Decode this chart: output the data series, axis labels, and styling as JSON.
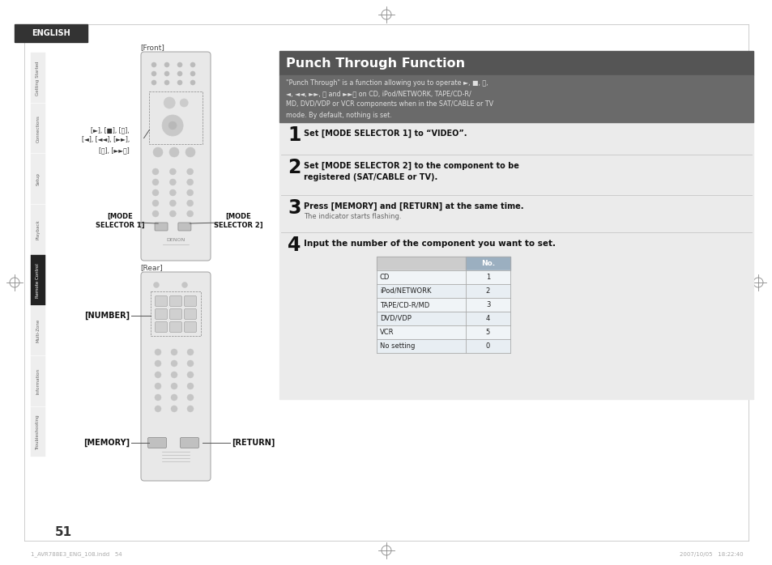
{
  "bg_color": "#ffffff",
  "title": "Punch Through Function",
  "title_bg": "#555555",
  "title_color": "#ffffff",
  "intro_text": "\"Punch Through\" is a function allowing you to operate ►, ■, ⏯,\n◄, ◄◄, ►►, ⏮ and ►►⏭ on CD, iPod/NETWORK, TAPE/CD-R/\nMD, DVD/VDP or VCR components when in the SAT/CABLE or TV\nmode. By default, nothing is set.",
  "step1_bold": "Set [MODE SELECTOR 1] to “VIDEO”.",
  "step2_bold": "Set [MODE SELECTOR 2] to the component to be\nregistered (SAT/CABLE or TV).",
  "step3_bold": "Press [MEMORY] and [RETURN] at the same time.",
  "step3_normal": "The indicator starts flashing.",
  "step4_bold": "Input the number of the component you want to set.",
  "table_header": "No.",
  "table_rows": [
    [
      "CD",
      "1"
    ],
    [
      "iPod/NETWORK",
      "2"
    ],
    [
      "TAPE/CD-R/MD",
      "3"
    ],
    [
      "DVD/VDP",
      "4"
    ],
    [
      "VCR",
      "5"
    ],
    [
      "No setting",
      "0"
    ]
  ],
  "table_header_bg": "#9bafc0",
  "sidebar_tabs": [
    "Getting Started",
    "Connections",
    "Setup",
    "Playback",
    "Remote Control",
    "Multi-Zone",
    "Information",
    "Troubleshooting"
  ],
  "sidebar_active": "Remote Control",
  "sidebar_active_bg": "#222222",
  "sidebar_active_color": "#ffffff",
  "sidebar_inactive_bg": "#eeeeee",
  "sidebar_inactive_color": "#666666",
  "english_bg": "#333333",
  "english_color": "#ffffff",
  "page_number": "51",
  "front_label": "[Front]",
  "rear_label": "[Rear]",
  "mode_sel1_label": "[MODE\nSELECTOR 1]",
  "mode_sel2_label": "[MODE\nSELECTOR 2]",
  "number_label": "[NUMBER]",
  "memory_label": "[MEMORY]",
  "return_label": "[RETURN]",
  "button_labels": "[►], [■], [⏯],\n[◄], [◄◄], [►►],\n[⏮], [►►⏭]",
  "footer_left": "1_AVR788E3_ENG_108.indd   54",
  "footer_right": "2007/10/05   18:22:40",
  "remote_body_color": "#e8e8e8",
  "remote_edge_color": "#aaaaaa",
  "remote_btn_color": "#d0d0d0",
  "remote_btn_edge": "#999999",
  "panel_bg": "#e8e8e8",
  "step_sep_color": "#cccccc"
}
